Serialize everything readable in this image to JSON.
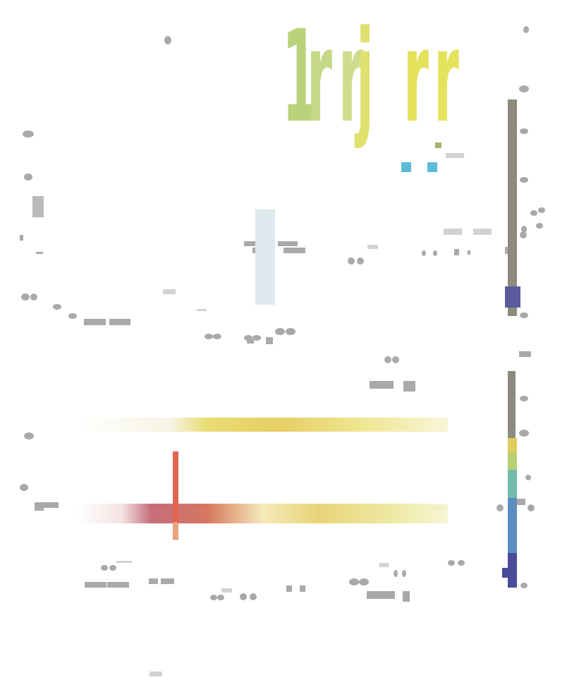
{
  "title_glyphs": [
    {
      "text": "1",
      "color": "#b9d37a"
    },
    {
      "text": "r",
      "color": "#c4d886"
    },
    {
      "text": "r",
      "color": "#cfdc8c"
    },
    {
      "text": "j",
      "color": "#dfe06e"
    },
    {
      "text": "r",
      "color": "#e4e15a"
    },
    {
      "text": "r",
      "color": "#e4e35e"
    }
  ],
  "chart_data": [
    {
      "type": "heatmap",
      "colorbar_colors": [
        "#8e8a7d",
        "#5a5a9e"
      ],
      "highlight_colors": [
        "#dde9ec",
        "#5bbbd8"
      ],
      "marks": [
        "small-squares",
        "ellipses"
      ]
    },
    {
      "type": "heatmap",
      "strips": [
        {
          "palette": [
            "#f0f0e0",
            "#e8d85a",
            "#e6c84a",
            "#f2e9a0"
          ]
        },
        {
          "palette": [
            "#f3e7e3",
            "#c65a60",
            "#d07050",
            "#e9c98a",
            "#f0f0c0"
          ]
        }
      ],
      "marker_color": "#e06650",
      "colorbar_colors": [
        "#8e8a7d",
        "#e0cc5a",
        "#b9cf74",
        "#72bcae",
        "#5b8dc2",
        "#4a4c98"
      ]
    }
  ]
}
